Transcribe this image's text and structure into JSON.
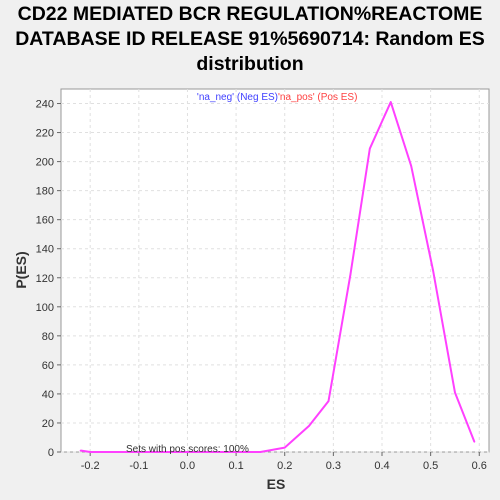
{
  "chart_data": {
    "type": "line",
    "title_lines": [
      "CD22 MEDIATED BCR REGULATION%REACTOME",
      "DATABASE ID RELEASE 91%5690714: Random ES",
      "distribution"
    ],
    "xlabel": "ES",
    "ylabel": "P(ES)",
    "xlim": [
      -0.26,
      0.62
    ],
    "ylim": [
      0,
      250
    ],
    "xticks": [
      -0.2,
      -0.1,
      0.0,
      0.1,
      0.2,
      0.3,
      0.4,
      0.5,
      0.6
    ],
    "xtick_labels": [
      "-0.2",
      "-0.1",
      "0.0",
      "0.1",
      "0.2",
      "0.3",
      "0.4",
      "0.5",
      "0.6"
    ],
    "yticks": [
      0,
      20,
      40,
      60,
      80,
      100,
      120,
      140,
      160,
      180,
      200,
      220,
      240
    ],
    "ytick_labels": [
      "0",
      "20",
      "40",
      "60",
      "80",
      "100",
      "120",
      "140",
      "160",
      "180",
      "200",
      "220",
      "240"
    ],
    "grid": true,
    "legend": [
      {
        "label": "'na_neg' (Neg ES)",
        "color": "#4040ff"
      },
      {
        "label": "'na_pos' (Pos ES)",
        "color": "#ff4040"
      }
    ],
    "legend_placement": "top-center",
    "annotation": "Sets with pos scores: 100%",
    "series": [
      {
        "color": "#ff40ff",
        "x": [
          -0.22,
          -0.2,
          -0.15,
          -0.1,
          -0.05,
          0.0,
          0.05,
          0.1,
          0.15,
          0.2,
          0.25,
          0.29,
          0.335,
          0.375,
          0.418,
          0.46,
          0.505,
          0.55,
          0.59
        ],
        "values": [
          1,
          0,
          0,
          0,
          0,
          0,
          0,
          0,
          0,
          3,
          18,
          35,
          122,
          209,
          241,
          197,
          125,
          41,
          7
        ]
      }
    ]
  }
}
